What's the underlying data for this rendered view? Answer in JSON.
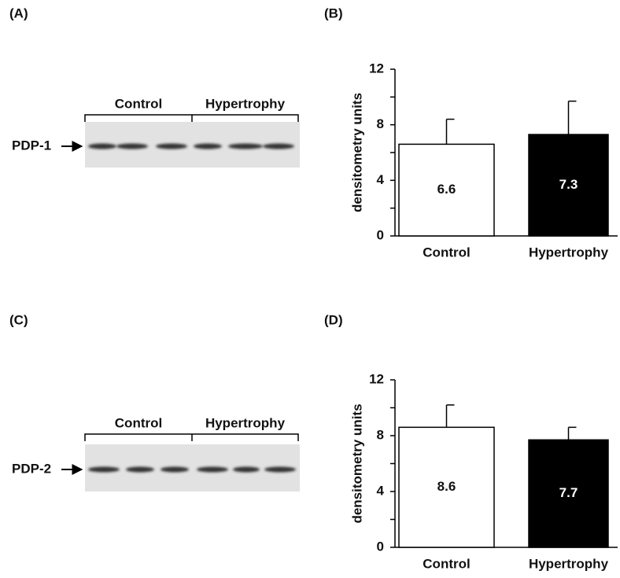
{
  "blots": [
    {
      "panel": "(A)",
      "protein": "PDP-1",
      "groups": [
        "Control",
        "Hypertrophy"
      ]
    },
    {
      "panel": "(C)",
      "protein": "PDP-2",
      "groups": [
        "Control",
        "Hypertrophy"
      ]
    }
  ],
  "chart_data": [
    {
      "type": "bar",
      "panel": "(B)",
      "ylabel": "densitometry units",
      "categories": [
        "Control",
        "Hypertrophy"
      ],
      "values": [
        6.6,
        7.3
      ],
      "errors": [
        1.8,
        2.4
      ],
      "colors": [
        "#ffffff",
        "#000000"
      ],
      "ylim": [
        0,
        12
      ],
      "yticks": [
        0,
        4,
        8,
        12
      ],
      "minor_yticks": [
        2,
        6,
        10
      ]
    },
    {
      "type": "bar",
      "panel": "(D)",
      "ylabel": "densitometry units",
      "categories": [
        "Control",
        "Hypertrophy"
      ],
      "values": [
        8.6,
        7.7
      ],
      "errors": [
        1.6,
        0.9
      ],
      "colors": [
        "#ffffff",
        "#000000"
      ],
      "ylim": [
        0,
        12
      ],
      "yticks": [
        0,
        4,
        8,
        12
      ],
      "minor_yticks": [
        2,
        6,
        10
      ]
    }
  ]
}
